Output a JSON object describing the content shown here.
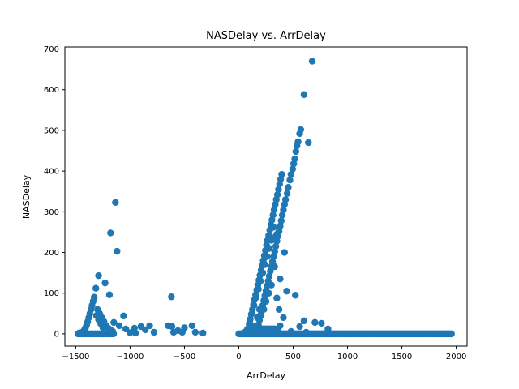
{
  "chart_data": {
    "type": "scatter",
    "title": "NASDelay vs. ArrDelay",
    "xlabel": "ArrDelay",
    "ylabel": "NASDelay",
    "xlim": [
      -1600,
      2100
    ],
    "ylim": [
      -30,
      705
    ],
    "xticks": [
      -1500,
      -1000,
      -500,
      0,
      500,
      1000,
      1500,
      2000
    ],
    "yticks": [
      0,
      100,
      200,
      300,
      400,
      500,
      600,
      700
    ],
    "grid": false,
    "color": "#1f77b4",
    "points": [
      [
        675,
        670
      ],
      [
        600,
        588
      ],
      [
        570,
        502
      ],
      [
        560,
        492
      ],
      [
        640,
        470
      ],
      [
        545,
        472
      ],
      [
        535,
        462
      ],
      [
        525,
        448
      ],
      [
        515,
        430
      ],
      [
        505,
        418
      ],
      [
        495,
        405
      ],
      [
        480,
        392
      ],
      [
        470,
        378
      ],
      [
        455,
        360
      ],
      [
        445,
        345
      ],
      [
        430,
        330
      ],
      [
        420,
        318
      ],
      [
        410,
        305
      ],
      [
        400,
        292
      ],
      [
        390,
        278
      ],
      [
        380,
        265
      ],
      [
        370,
        252
      ],
      [
        360,
        240
      ],
      [
        350,
        228
      ],
      [
        340,
        215
      ],
      [
        330,
        202
      ],
      [
        320,
        190
      ],
      [
        310,
        178
      ],
      [
        300,
        166
      ],
      [
        290,
        154
      ],
      [
        280,
        142
      ],
      [
        270,
        130
      ],
      [
        260,
        118
      ],
      [
        250,
        106
      ],
      [
        240,
        94
      ],
      [
        230,
        82
      ],
      [
        220,
        70
      ],
      [
        210,
        58
      ],
      [
        200,
        46
      ],
      [
        190,
        34
      ],
      [
        180,
        22
      ],
      [
        170,
        10
      ],
      [
        395,
        392
      ],
      [
        385,
        380
      ],
      [
        375,
        368
      ],
      [
        365,
        355
      ],
      [
        355,
        342
      ],
      [
        345,
        330
      ],
      [
        335,
        318
      ],
      [
        325,
        305
      ],
      [
        315,
        292
      ],
      [
        305,
        280
      ],
      [
        295,
        268
      ],
      [
        285,
        255
      ],
      [
        275,
        242
      ],
      [
        265,
        230
      ],
      [
        255,
        218
      ],
      [
        245,
        205
      ],
      [
        235,
        192
      ],
      [
        225,
        180
      ],
      [
        215,
        168
      ],
      [
        205,
        156
      ],
      [
        195,
        144
      ],
      [
        185,
        132
      ],
      [
        175,
        120
      ],
      [
        165,
        108
      ],
      [
        155,
        96
      ],
      [
        145,
        84
      ],
      [
        135,
        72
      ],
      [
        125,
        60
      ],
      [
        115,
        48
      ],
      [
        105,
        36
      ],
      [
        95,
        24
      ],
      [
        85,
        12
      ],
      [
        350,
        245
      ],
      [
        340,
        240
      ],
      [
        320,
        262
      ],
      [
        300,
        230
      ],
      [
        280,
        210
      ],
      [
        260,
        190
      ],
      [
        240,
        170
      ],
      [
        220,
        150
      ],
      [
        200,
        130
      ],
      [
        180,
        110
      ],
      [
        160,
        90
      ],
      [
        140,
        70
      ],
      [
        120,
        50
      ],
      [
        100,
        30
      ],
      [
        420,
        200
      ],
      [
        380,
        135
      ],
      [
        330,
        165
      ],
      [
        300,
        120
      ],
      [
        275,
        100
      ],
      [
        250,
        80
      ],
      [
        230,
        60
      ],
      [
        205,
        45
      ],
      [
        190,
        60
      ],
      [
        170,
        40
      ],
      [
        150,
        20
      ],
      [
        130,
        15
      ],
      [
        110,
        8
      ],
      [
        90,
        5
      ],
      [
        70,
        3
      ],
      [
        440,
        105
      ],
      [
        520,
        95
      ],
      [
        350,
        88
      ],
      [
        370,
        60
      ],
      [
        410,
        40
      ],
      [
        380,
        20
      ],
      [
        360,
        10
      ],
      [
        600,
        32
      ],
      [
        700,
        28
      ],
      [
        760,
        26
      ],
      [
        820,
        12
      ],
      [
        560,
        18
      ],
      [
        480,
        6
      ],
      [
        620,
        4
      ],
      [
        -1135,
        323
      ],
      [
        -1180,
        248
      ],
      [
        -1120,
        203
      ],
      [
        -1290,
        143
      ],
      [
        -1230,
        125
      ],
      [
        -1315,
        112
      ],
      [
        -1190,
        96
      ],
      [
        -1330,
        90
      ],
      [
        -1340,
        80
      ],
      [
        -1350,
        70
      ],
      [
        -1360,
        60
      ],
      [
        -1370,
        50
      ],
      [
        -1380,
        40
      ],
      [
        -1390,
        30
      ],
      [
        -1400,
        22
      ],
      [
        -1410,
        15
      ],
      [
        -1420,
        10
      ],
      [
        -1430,
        6
      ],
      [
        -1300,
        60
      ],
      [
        -1280,
        50
      ],
      [
        -1260,
        40
      ],
      [
        -1240,
        30
      ],
      [
        -1220,
        20
      ],
      [
        -1200,
        14
      ],
      [
        -1310,
        45
      ],
      [
        -1290,
        35
      ],
      [
        -1270,
        25
      ],
      [
        -1250,
        15
      ],
      [
        -1180,
        10
      ],
      [
        -1160,
        6
      ],
      [
        -1060,
        44
      ],
      [
        -1100,
        20
      ],
      [
        -1150,
        28
      ],
      [
        -1040,
        12
      ],
      [
        -960,
        14
      ],
      [
        -900,
        18
      ],
      [
        -820,
        20
      ],
      [
        -860,
        10
      ],
      [
        -780,
        4
      ],
      [
        -650,
        20
      ],
      [
        -615,
        18
      ],
      [
        -620,
        91
      ],
      [
        -520,
        4
      ],
      [
        -500,
        15
      ],
      [
        -430,
        20
      ],
      [
        -400,
        4
      ],
      [
        -330,
        2
      ],
      [
        -600,
        4
      ],
      [
        -560,
        8
      ],
      [
        -1470,
        2
      ],
      [
        -1450,
        3
      ],
      [
        -1000,
        3
      ],
      [
        -950,
        2
      ]
    ],
    "bands": [
      {
        "x_start": -1480,
        "x_end": -1150,
        "y": 0,
        "step": 8
      },
      {
        "x_start": 0,
        "x_end": 1960,
        "y": 0,
        "step": 6
      },
      {
        "x_start": 60,
        "x_end": 360,
        "y": 5,
        "step": 6
      },
      {
        "x_start": 80,
        "x_end": 340,
        "y": 12,
        "step": 6
      }
    ]
  }
}
